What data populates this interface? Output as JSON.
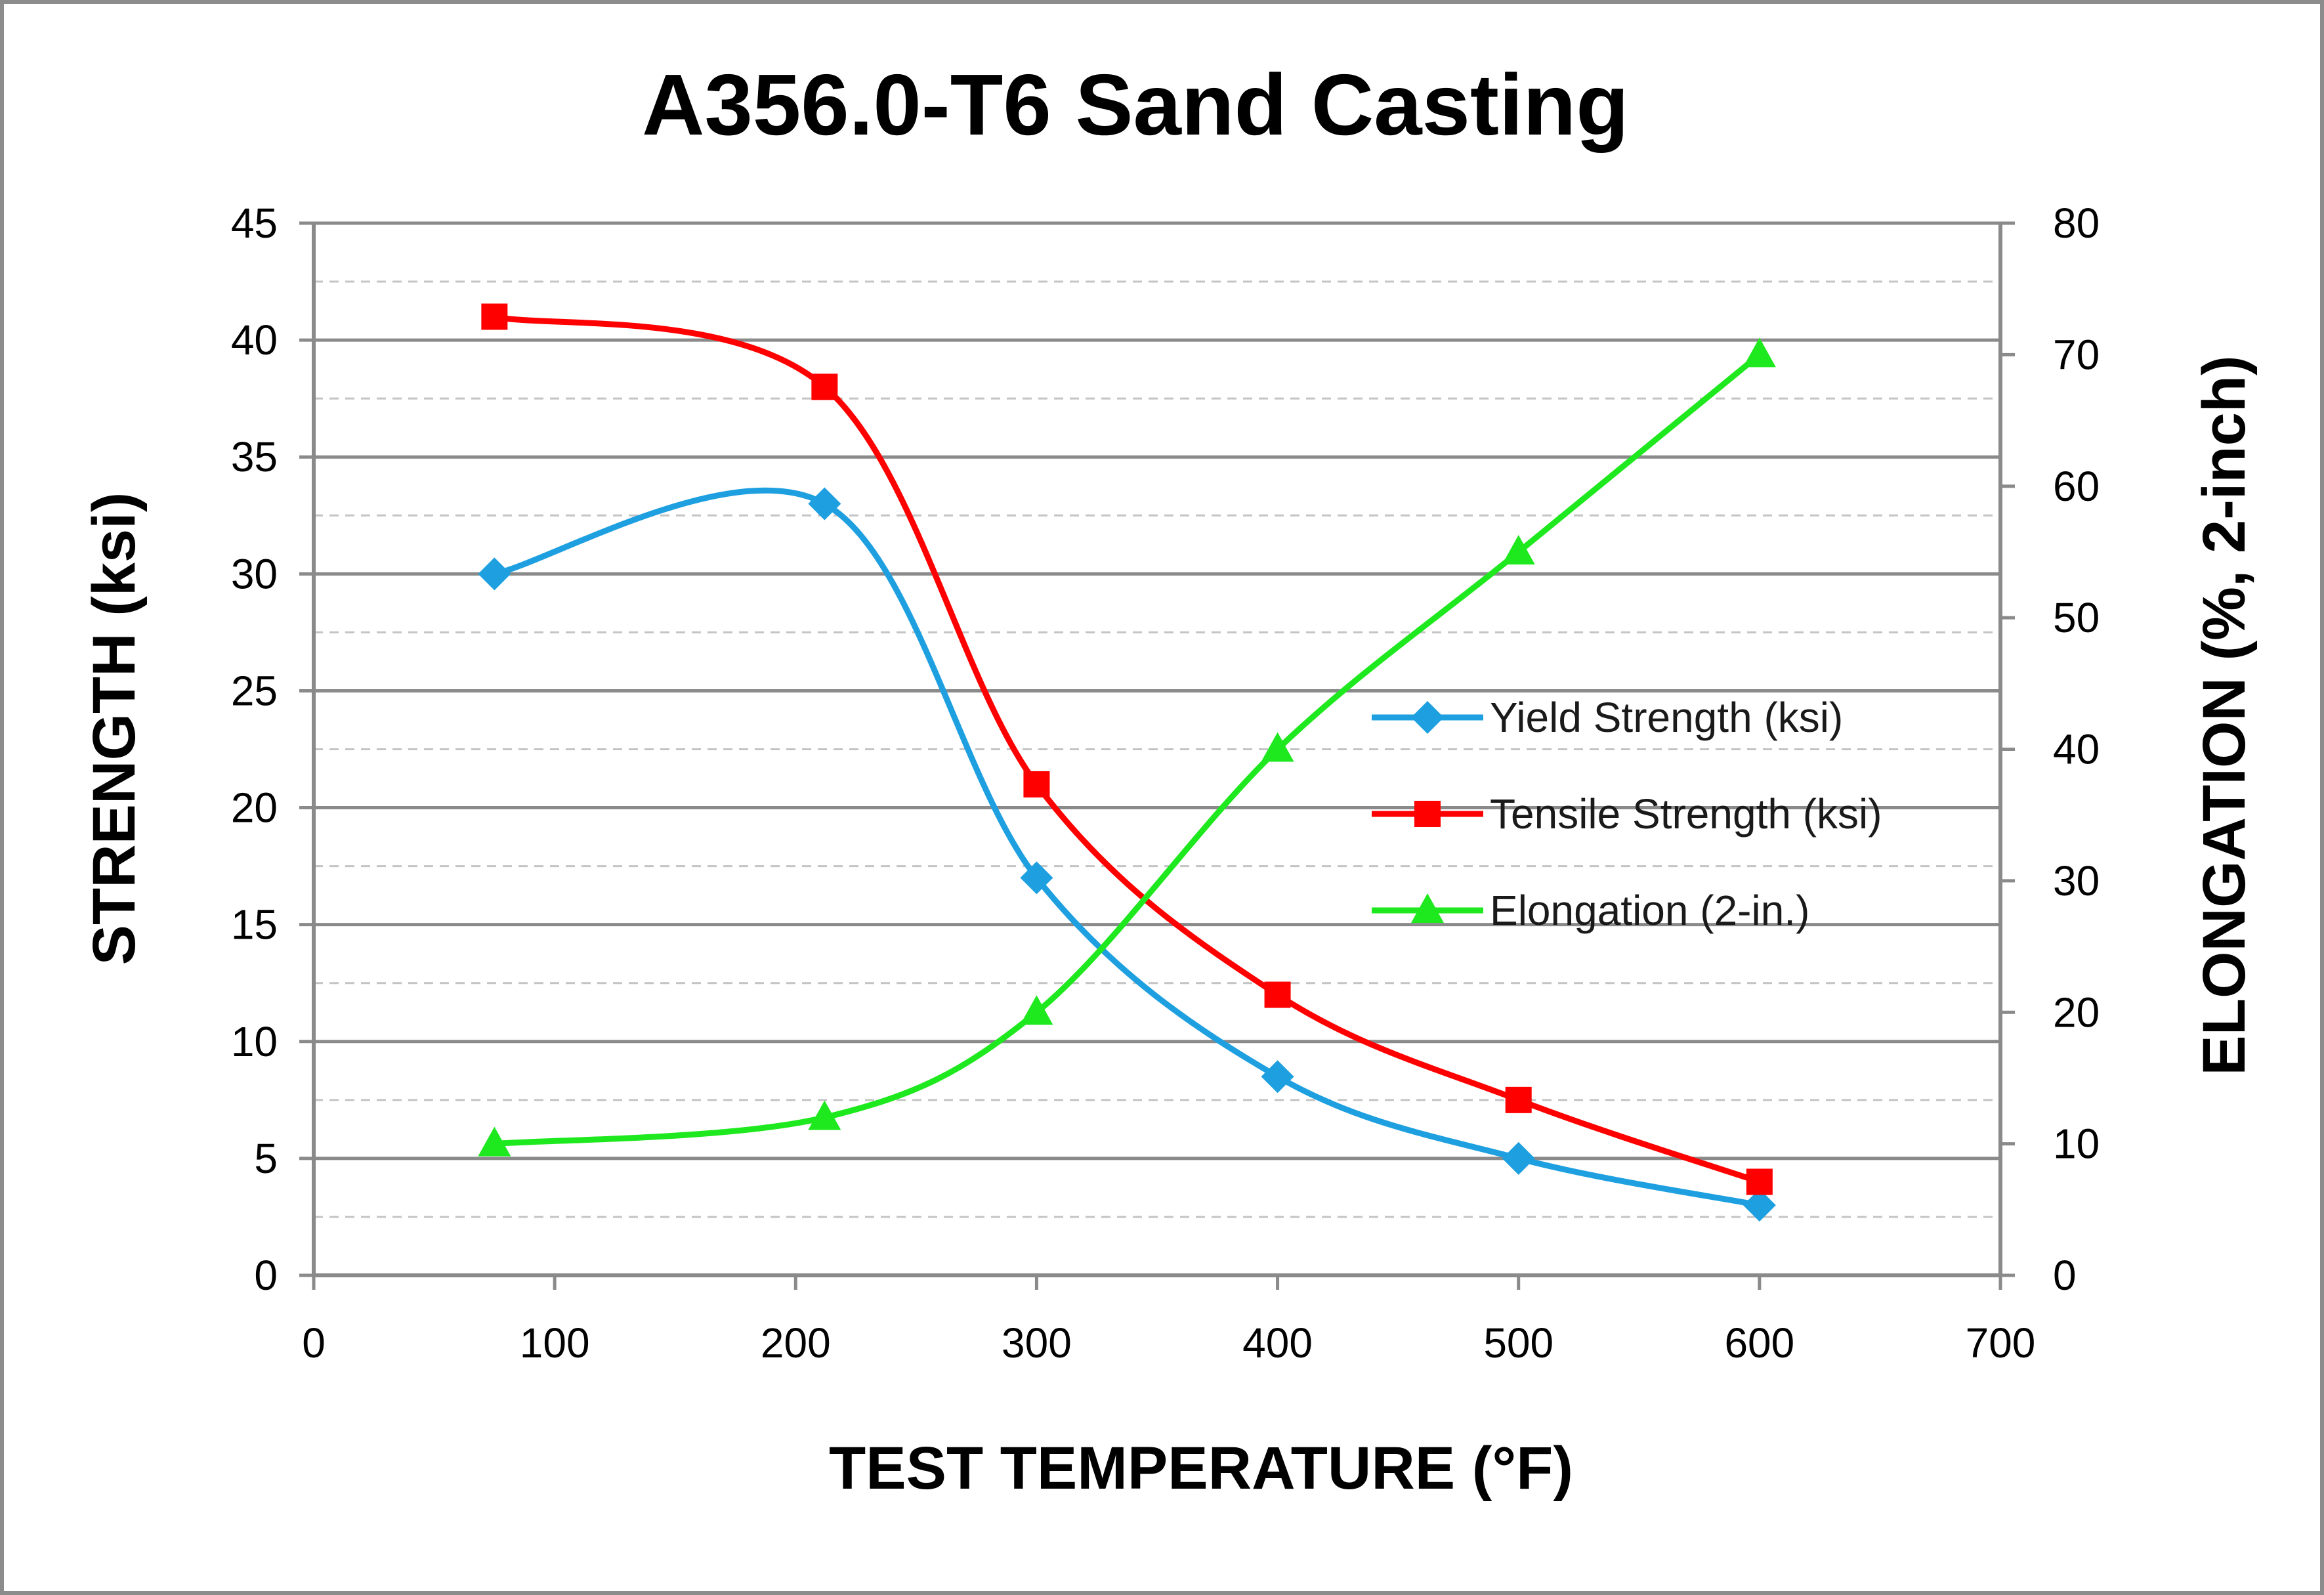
{
  "chart_data": {
    "type": "line",
    "title": "A356.0-T6 Sand Casting",
    "xlabel": "TEST TEMPERATURE (°F)",
    "ylabel": "STRENGTH (ksi)",
    "y2label": "ELONGATION (%, 2-inch)",
    "xlim": [
      0,
      700
    ],
    "ylim": [
      0,
      45
    ],
    "y2lim": [
      0,
      80
    ],
    "xticks": [
      0,
      100,
      200,
      300,
      400,
      500,
      600,
      700
    ],
    "yticks": [
      0,
      5,
      10,
      15,
      20,
      25,
      30,
      35,
      40,
      45
    ],
    "y2ticks": [
      0,
      10,
      20,
      30,
      40,
      50,
      60,
      70,
      80
    ],
    "grid": true,
    "legend_position": "center-right",
    "series": [
      {
        "name": "Yield Strength (ksi)",
        "axis": "left",
        "color": "#1ea0e0",
        "marker": "diamond",
        "x": [
          75,
          212,
          300,
          400,
          500,
          600
        ],
        "y": [
          30,
          33,
          17,
          8.5,
          5,
          3
        ]
      },
      {
        "name": "Tensile Strength (ksi)",
        "axis": "left",
        "color": "#ff0000",
        "marker": "square",
        "x": [
          75,
          212,
          300,
          400,
          500,
          600
        ],
        "y": [
          41,
          38,
          21,
          12,
          7.5,
          4
        ]
      },
      {
        "name": "Elongation (2-in.)",
        "axis": "right",
        "color": "#1ee81e",
        "marker": "triangle",
        "x": [
          75,
          212,
          300,
          400,
          500,
          600
        ],
        "y": [
          10,
          12,
          20,
          40,
          55,
          70
        ]
      }
    ]
  }
}
